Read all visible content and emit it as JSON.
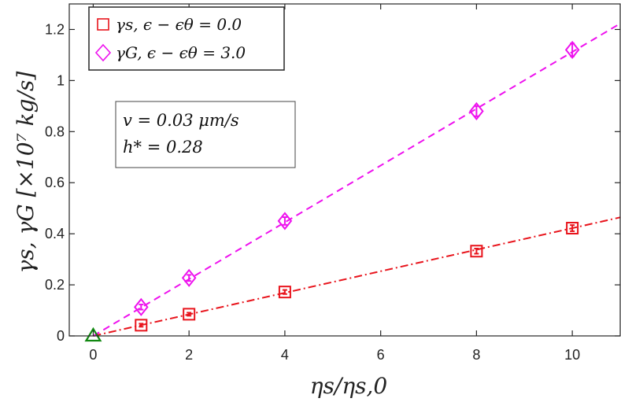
{
  "chart_data": {
    "type": "scatter",
    "xlabel": "ηs/ηs,0",
    "ylabel": "γs, γG [×10⁷ kg/s]",
    "xlim": [
      -0.5,
      11
    ],
    "ylim": [
      0,
      1.3
    ],
    "xticks": [
      0,
      2,
      4,
      6,
      8,
      10
    ],
    "xtick_labels": [
      "0",
      "2",
      "4",
      "6",
      "8",
      "10"
    ],
    "yticks": [
      0,
      0.2,
      0.4,
      0.6,
      0.8,
      1.0,
      1.2
    ],
    "ytick_labels": [
      "0",
      "0.2",
      "0.4",
      "0.6",
      "0.8",
      "1",
      "1.2"
    ],
    "grid": false,
    "legend_position": "top-left",
    "series": [
      {
        "name": "γs, ϵ − ϵθ = 0.0",
        "marker": "square",
        "color": "#e8141c",
        "x": [
          1,
          2,
          4,
          8,
          10
        ],
        "y": [
          0.042,
          0.085,
          0.172,
          0.332,
          0.422
        ],
        "err": [
          0.006,
          0.006,
          0.008,
          0.01,
          0.012
        ]
      },
      {
        "name": "γG, ϵ − ϵθ = 3.0",
        "marker": "diamond",
        "color": "#ee11ee",
        "x": [
          1,
          2,
          4,
          8,
          10
        ],
        "y": [
          0.113,
          0.227,
          0.45,
          0.88,
          1.12
        ],
        "err": [
          0.01,
          0.012,
          0.015,
          0.02,
          0.025
        ]
      }
    ],
    "fit_lines": [
      {
        "series": "γs",
        "style": "dash-dot",
        "color": "#e8141c",
        "slope": 0.0422
      },
      {
        "series": "γG",
        "style": "dashed",
        "color": "#ee11ee",
        "slope": 0.1112
      }
    ],
    "origin_marker": {
      "shape": "triangle",
      "color": "#118811",
      "x": 0,
      "y": 0
    },
    "annotation_lines": [
      "v = 0.03 μm/s",
      "h* = 0.28"
    ]
  }
}
